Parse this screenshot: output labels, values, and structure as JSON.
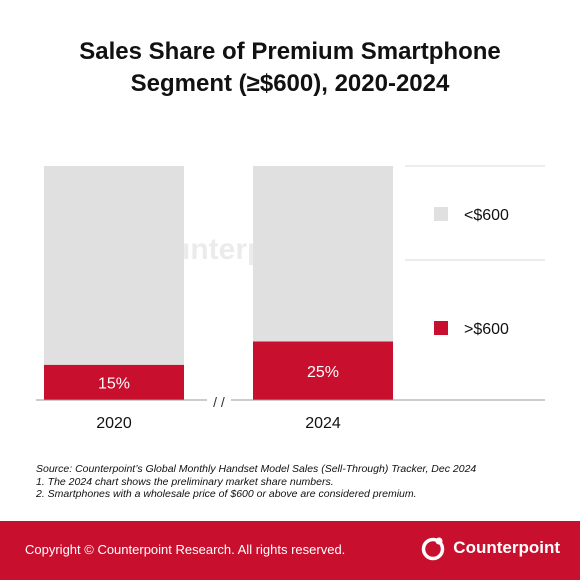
{
  "title": {
    "line1": "Sales Share of Premium Smartphone",
    "line2": "Segment (≥$600), 2020-2024"
  },
  "watermark": "Counterpoint",
  "chart_data": {
    "type": "bar",
    "stacked": true,
    "categories": [
      "2020",
      "2024"
    ],
    "axis_break": "/ /",
    "ylim": [
      0,
      100
    ],
    "series": [
      {
        "name": ">$600",
        "values": [
          15,
          25
        ],
        "labels": [
          "15%",
          "25%"
        ],
        "color": "#c8102e"
      },
      {
        "name": "<$600",
        "values": [
          85,
          75
        ],
        "color": "#e0e0e0"
      }
    ],
    "legend": {
      "position": "right",
      "order": [
        "<$600",
        ">$600"
      ]
    }
  },
  "notes": [
    "Source: Counterpoint’s Global Monthly Handset Model Sales (Sell-Through) Tracker, Dec 2024",
    "1. The 2024 chart shows the preliminary market share numbers.",
    "2. Smartphones with a wholesale price of $600 or above are considered premium."
  ],
  "footer": {
    "copyright": "Copyright © Counterpoint Research. All rights reserved.",
    "brand": "Counterpoint",
    "color": "#c8102e"
  }
}
